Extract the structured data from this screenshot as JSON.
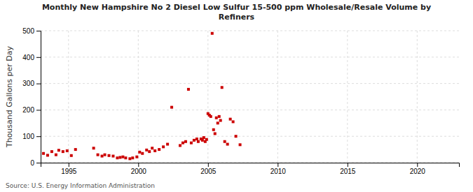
{
  "chart_data": {
    "type": "scatter",
    "title": "Monthly New Hampshire No 2 Diesel Low Sulfur 15-500 ppm Wholesale/Resale Volume by\nRefiners",
    "ylabel": "Thousand Gallons per Day",
    "annotations": [
      "Source: U.S. Energy Information Administration"
    ],
    "color": "#cc0000",
    "marker": "square",
    "grid": true,
    "xlim": [
      1993.0,
      2023.0
    ],
    "ylim": [
      0,
      500
    ],
    "xticks": [
      1995,
      2000,
      2005,
      2010,
      2015,
      2020
    ],
    "yticks": [
      0,
      100,
      200,
      300,
      400,
      500
    ],
    "x": [
      1993.2,
      1993.5,
      1993.8,
      1994.1,
      1994.3,
      1994.6,
      1994.9,
      1995.2,
      1995.5,
      1996.8,
      1997.1,
      1997.4,
      1997.6,
      1997.9,
      1998.2,
      1998.5,
      1998.7,
      1998.9,
      1999.1,
      1999.4,
      1999.6,
      1999.9,
      2000.1,
      2000.3,
      2000.6,
      2000.8,
      2001.0,
      2001.2,
      2001.5,
      2001.8,
      2002.1,
      2002.4,
      2003.0,
      2003.2,
      2003.4,
      2003.6,
      2003.8,
      2004.0,
      2004.2,
      2004.3,
      2004.5,
      2004.6,
      2004.7,
      2004.8,
      2004.9,
      2005.0,
      2005.1,
      2005.2,
      2005.3,
      2005.4,
      2005.5,
      2005.6,
      2005.7,
      2005.8,
      2005.9,
      2006.0,
      2006.2,
      2006.4,
      2006.6,
      2006.8,
      2007.0,
      2007.3
    ],
    "values": [
      35,
      28,
      42,
      30,
      47,
      42,
      45,
      27,
      50,
      55,
      30,
      25,
      30,
      27,
      25,
      18,
      20,
      22,
      18,
      15,
      18,
      22,
      40,
      35,
      48,
      42,
      55,
      45,
      50,
      60,
      70,
      210,
      65,
      75,
      80,
      278,
      75,
      85,
      90,
      80,
      90,
      85,
      95,
      80,
      88,
      186,
      180,
      175,
      490,
      125,
      110,
      170,
      150,
      175,
      160,
      285,
      80,
      70,
      165,
      155,
      100,
      68
    ]
  }
}
